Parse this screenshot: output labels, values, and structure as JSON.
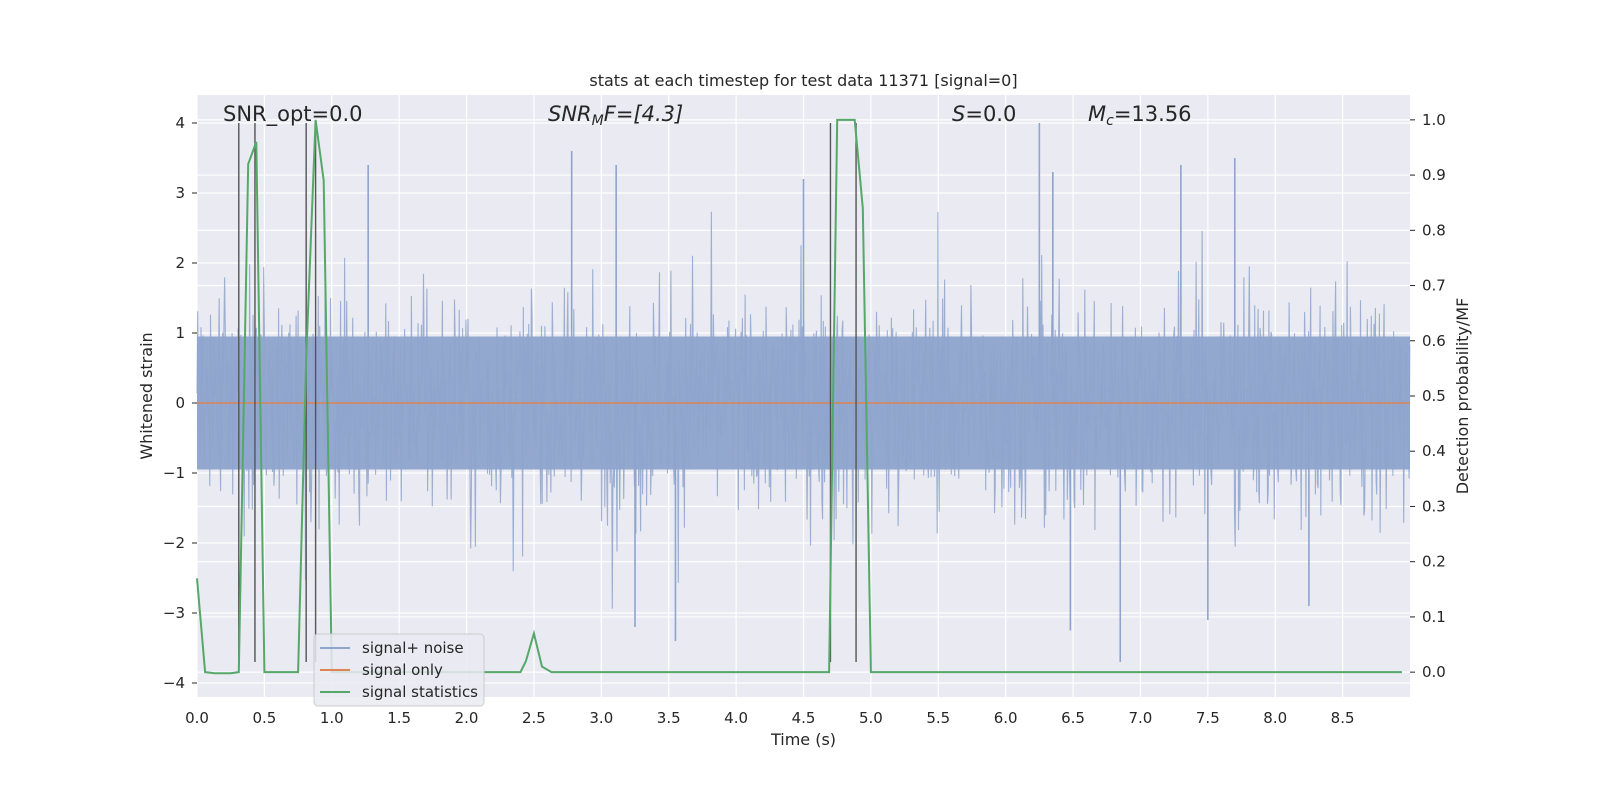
{
  "chart_data": {
    "type": "line",
    "title": "stats at each timestep for test data 11371 [signal=0]",
    "xlabel": "Time (s)",
    "ylabel": "Whitened strain",
    "y2label": "Detection probability/MF",
    "xlim": [
      0.0,
      9.0
    ],
    "ylim": [
      -4.2,
      4.4
    ],
    "y2lim": [
      -0.045,
      1.045
    ],
    "x_ticks": [
      "0.0",
      "0.5",
      "1.0",
      "1.5",
      "2.0",
      "2.5",
      "3.0",
      "3.5",
      "4.0",
      "4.5",
      "5.0",
      "5.5",
      "6.0",
      "6.5",
      "7.0",
      "7.5",
      "8.0",
      "8.5"
    ],
    "y_ticks": [
      "4",
      "3",
      "2",
      "1",
      "0",
      "−1",
      "−2",
      "−3",
      "−4"
    ],
    "y2_ticks": [
      "1.0",
      "0.9",
      "0.8",
      "0.7",
      "0.6",
      "0.5",
      "0.4",
      "0.3",
      "0.2",
      "0.1",
      "0.0"
    ],
    "grid": true,
    "legend_position": "lower-left",
    "annotations": {
      "snr_opt": "SNR_opt=0.0",
      "snr_mf_main": "SNR",
      "snr_mf_sub": "M",
      "snr_mf_rest": "F=[4.3]",
      "s_main": "S",
      "s_rest": "=0.0",
      "mc_main": "M",
      "mc_sub": "c",
      "mc_rest": "=13.56"
    },
    "series": [
      {
        "name": "signal+ noise",
        "color": "#8ea4cc",
        "axis": "left",
        "description_values": {
          "envelope_abs_typical": 1.3,
          "peak_max": 4.0,
          "trough_min": -3.7
        },
        "peaks": [
          {
            "x": 1.27,
            "y": 3.4
          },
          {
            "x": 2.78,
            "y": 3.6
          },
          {
            "x": 3.11,
            "y": 3.4
          },
          {
            "x": 4.5,
            "y": 3.2
          },
          {
            "x": 6.25,
            "y": 4.0
          },
          {
            "x": 6.35,
            "y": 3.3
          },
          {
            "x": 7.3,
            "y": 3.4
          },
          {
            "x": 7.7,
            "y": 3.5
          },
          {
            "x": 3.25,
            "y": -3.2
          },
          {
            "x": 3.55,
            "y": -3.4
          },
          {
            "x": 6.48,
            "y": -3.25
          },
          {
            "x": 6.85,
            "y": -3.7
          },
          {
            "x": 7.5,
            "y": -3.1
          },
          {
            "x": 8.25,
            "y": -2.9
          }
        ]
      },
      {
        "name": "signal only",
        "color": "#dd8452",
        "axis": "left",
        "x": [
          0.0,
          9.0
        ],
        "y": [
          0.0,
          0.0
        ]
      },
      {
        "name": "signal statistics",
        "color": "#55a868",
        "axis": "right",
        "x": [
          0.0,
          0.06,
          0.13,
          0.25,
          0.31,
          0.38,
          0.44,
          0.5,
          0.56,
          0.63,
          0.69,
          0.75,
          0.81,
          0.88,
          0.94,
          1.0,
          1.06,
          1.13,
          2.4,
          2.44,
          2.5,
          2.56,
          2.63,
          4.63,
          4.69,
          4.75,
          4.81,
          4.88,
          4.94,
          5.0,
          5.06,
          8.94
        ],
        "y": [
          0.17,
          0.0,
          -0.002,
          -0.002,
          0.0,
          0.92,
          0.96,
          0.0,
          0.0,
          0.0,
          0.0,
          0.0,
          0.57,
          1.0,
          0.89,
          0.0,
          0.0,
          0.0,
          0.0,
          0.02,
          0.07,
          0.01,
          0.0,
          0.0,
          0.0,
          1.0,
          1.0,
          1.0,
          0.84,
          0.0,
          0.0,
          0.0
        ]
      }
    ],
    "vertical_markers_x": [
      0.31,
      0.43,
      0.81,
      0.88,
      4.7,
      4.89
    ]
  }
}
